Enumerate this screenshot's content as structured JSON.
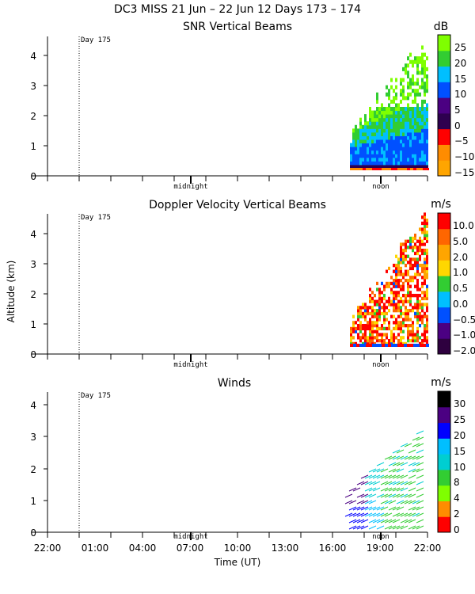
{
  "figure_title": "DC3 MISS  21 Jun – 22 Jun 12 Days 173 – 174",
  "xlabel": "Time (UT)",
  "ylabel": "Altitude (km)",
  "x_ticks": [
    "22:00",
    "01:00",
    "04:00",
    "07:00",
    "10:00",
    "13:00",
    "16:00",
    "19:00",
    "22:00"
  ],
  "day_marker": "Day 175",
  "markers": {
    "midnight": "midnight",
    "noon": "noon"
  },
  "colors": {
    "snr": [
      "#7fff00",
      "#32cd32",
      "#00bfff",
      "#0050ff",
      "#4b0082",
      "#2e004f",
      "#ff0000",
      "#ff8c00",
      "#ffa500"
    ],
    "doppler": [
      "#ff0000",
      "#ff6600",
      "#ffa500",
      "#ffd700",
      "#32cd32",
      "#00bfff",
      "#0050ff",
      "#4b0082",
      "#2e003f"
    ],
    "winds": [
      "#000000",
      "#4b0082",
      "#0000ff",
      "#00bfff",
      "#00ced1",
      "#32cd32",
      "#7fff00",
      "#ff8c00",
      "#ff0000"
    ]
  },
  "chart_data": [
    {
      "type": "heatmap",
      "title": "SNR Vertical Beams",
      "unit": "dB",
      "colorbar_ticks": [
        "25",
        "20",
        "15",
        "10",
        "5",
        "0",
        "−5",
        "−10",
        "−15"
      ],
      "y_ticks": [
        "0",
        "1",
        "2",
        "3",
        "4"
      ],
      "ylim": [
        0,
        4.6
      ],
      "data_time_range": [
        "17:45",
        "22:00"
      ],
      "max_altitude_km": 4.6
    },
    {
      "type": "heatmap",
      "title": "Doppler Velocity Vertical Beams",
      "unit": "m/s",
      "colorbar_ticks": [
        "10.0",
        "5.0",
        "2.0",
        "1.0",
        "0.5",
        "0.0",
        "−0.5",
        "−1.0",
        "−2.0"
      ],
      "y_ticks": [
        "0",
        "1",
        "2",
        "3",
        "4"
      ],
      "ylim": [
        0,
        4.6
      ],
      "data_time_range": [
        "17:45",
        "22:00"
      ],
      "max_altitude_km": 4.6
    },
    {
      "type": "scatter",
      "title": "Winds",
      "unit": "m/s",
      "colorbar_ticks": [
        "30",
        "25",
        "20",
        "15",
        "10",
        "8",
        "4",
        "2",
        "0"
      ],
      "y_ticks": [
        "0",
        "1",
        "2",
        "3",
        "4"
      ],
      "ylim": [
        0,
        4.4
      ],
      "data_time_range": [
        "17:45",
        "21:30"
      ],
      "max_altitude_km": 3.2
    }
  ]
}
